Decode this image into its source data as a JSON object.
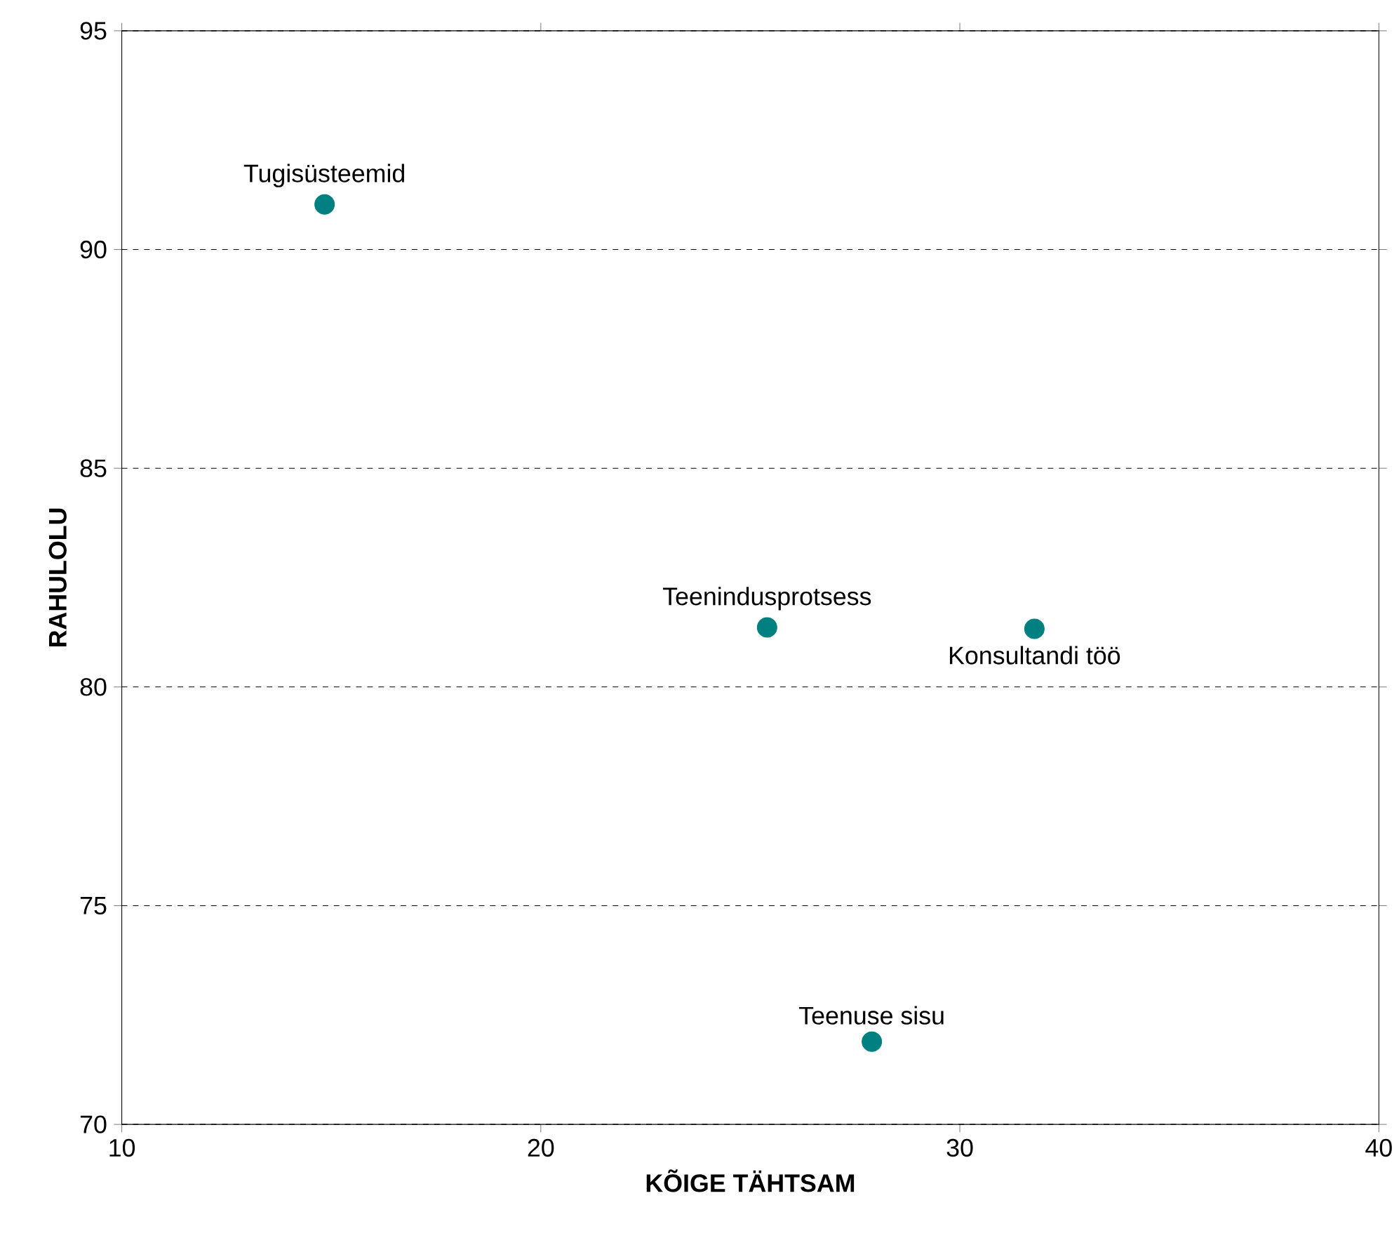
{
  "chart_data": {
    "type": "scatter",
    "xlabel": "KÕIGE TÄHTSAM",
    "ylabel": "RAHULOLU",
    "x": [
      14.84,
      25.4,
      31.78,
      27.9
    ],
    "series": [
      {
        "color": "#008080",
        "values": [
          91.03,
          81.36,
          81.33,
          71.89
        ]
      }
    ],
    "annotations": [
      {
        "text": "Tugisüsteemid",
        "x": 14.84,
        "y": 91.03
      },
      {
        "text": "Teenindusprotsess",
        "x": 25.4,
        "y": 81.36
      },
      {
        "text": "Konsultandi töö",
        "x": 31.78,
        "y": 81.33
      },
      {
        "text": "Teenuse sisu",
        "x": 27.9,
        "y": 71.89
      }
    ],
    "xlim": [
      10,
      40
    ],
    "ylim": [
      70,
      95
    ],
    "xticks": [
      10,
      20,
      30,
      40
    ],
    "yticks": [
      70,
      75,
      80,
      85,
      90,
      95
    ],
    "grid": "y",
    "marker": "circle"
  }
}
